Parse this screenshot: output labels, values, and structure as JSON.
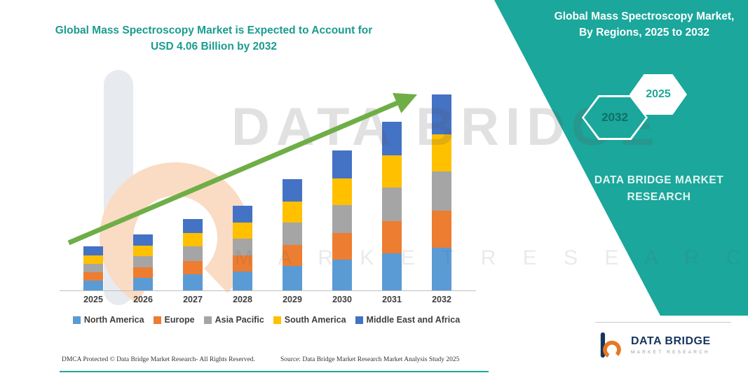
{
  "colors": {
    "panel_teal": "#1BA79B",
    "title_teal": "#1A9C90",
    "axis_line": "#BFBFBF",
    "tick_text": "#3F3F3F",
    "legend_text": "#3F3F3F",
    "footer_text": "#333333",
    "trend_arrow": "#6FAE46",
    "logo_navy": "#16355D",
    "logo_orange": "#E87722"
  },
  "header": {
    "title_line1": "Global Mass Spectroscopy Market is Expected to Account for",
    "title_line2": "USD 4.06 Billion by 2032"
  },
  "panel": {
    "title": "Global Mass Spectroscopy Market, By Regions, 2025 to 2032",
    "hex_back_label": "2032",
    "hex_front_label": "2025",
    "caption": "DATA BRIDGE MARKET RESEARCH"
  },
  "watermark": {
    "line1": "DATA BRIDGE",
    "line2": "M A R K E T   R E S E A R C H"
  },
  "chart_data": {
    "type": "stacked-bar",
    "title": "Global Mass Spectroscopy Market is Expected to Account for USD 4.06 Billion by 2032",
    "categories": [
      "2025",
      "2026",
      "2027",
      "2028",
      "2029",
      "2030",
      "2031",
      "2032"
    ],
    "series": [
      {
        "name": "North America",
        "color": "#5B9BD5",
        "values": [
          0.2,
          0.26,
          0.33,
          0.39,
          0.51,
          0.64,
          0.77,
          0.89
        ]
      },
      {
        "name": "Europe",
        "color": "#ED7D31",
        "values": [
          0.17,
          0.22,
          0.28,
          0.34,
          0.44,
          0.55,
          0.66,
          0.77
        ]
      },
      {
        "name": "Asia Pacific",
        "color": "#A5A5A5",
        "values": [
          0.18,
          0.23,
          0.3,
          0.35,
          0.46,
          0.58,
          0.7,
          0.81
        ]
      },
      {
        "name": "South America",
        "color": "#FFC000",
        "values": [
          0.17,
          0.22,
          0.28,
          0.34,
          0.44,
          0.55,
          0.66,
          0.77
        ]
      },
      {
        "name": "Middle East and Africa",
        "color": "#4472C4",
        "values": [
          0.19,
          0.23,
          0.29,
          0.35,
          0.47,
          0.58,
          0.69,
          0.82
        ]
      }
    ],
    "totals": [
      0.91,
      1.16,
      1.48,
      1.77,
      2.32,
      2.9,
      3.48,
      4.06
    ],
    "unit": "USD Billion (estimated from bar heights; 2032 total = 4.06 per title)",
    "ylim": [
      0,
      4.35
    ],
    "grid": false,
    "y_axis_visible": false,
    "legend_position": "bottom",
    "trend_arrow": true
  },
  "footer": {
    "dmca": "DMCA Protected © Data Bridge Market Research-  All Rights Reserved.",
    "source": "Source: Data Bridge Market Research  Market Analysis Study 2025"
  },
  "logo": {
    "name": "DATA BRIDGE",
    "caption": "MARKET RESEARCH"
  }
}
